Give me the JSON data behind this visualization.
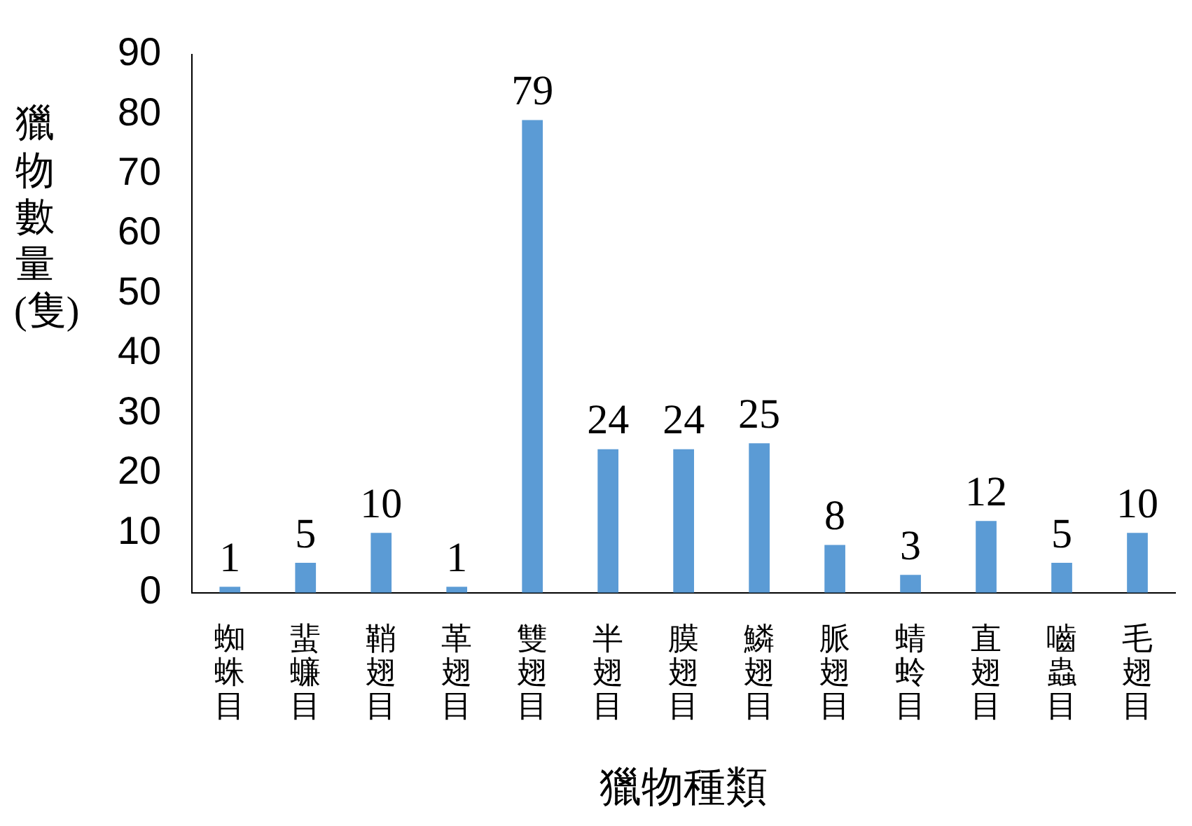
{
  "chart_data": {
    "type": "bar",
    "xlabel": "獵物種類",
    "ylabel": "獵物數量(隻)",
    "categories": [
      "蜘蛛目",
      "蜚蠊目",
      "鞘翅目",
      "革翅目",
      "雙翅目",
      "半翅目",
      "膜翅目",
      "鱗翅目",
      "脈翅目",
      "蜻蛉目",
      "直翅目",
      "嚙蟲目",
      "毛翅目"
    ],
    "values": [
      1,
      5,
      10,
      1,
      79,
      24,
      24,
      25,
      8,
      3,
      12,
      5,
      10
    ],
    "color": "#5b9bd5",
    "ylim": [
      0,
      90
    ],
    "yticks": [
      0,
      10,
      20,
      30,
      40,
      50,
      60,
      70,
      80,
      90
    ],
    "grid": false,
    "legend": false,
    "data_labels": true
  }
}
